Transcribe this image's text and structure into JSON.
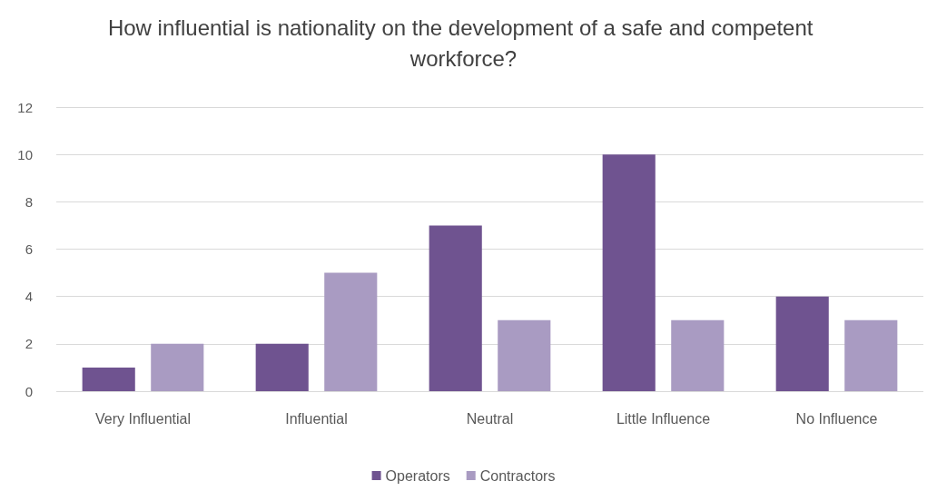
{
  "chart_data": {
    "type": "bar",
    "title": "How influential is nationality on the development of a safe and competent workforce?",
    "categories": [
      "Very Influential",
      "Influential",
      "Neutral",
      "Little Influence",
      "No Influence"
    ],
    "series": [
      {
        "name": "Operators",
        "color": "#6f5390",
        "values": [
          1,
          2,
          7,
          10,
          4
        ]
      },
      {
        "name": "Contractors",
        "color": "#a99bc2",
        "values": [
          2,
          5,
          3,
          3,
          3
        ]
      }
    ],
    "ylim": [
      0,
      12
    ],
    "yticks": [
      0,
      2,
      4,
      6,
      8,
      10,
      12
    ],
    "grid": "y",
    "legend": "bottom"
  }
}
